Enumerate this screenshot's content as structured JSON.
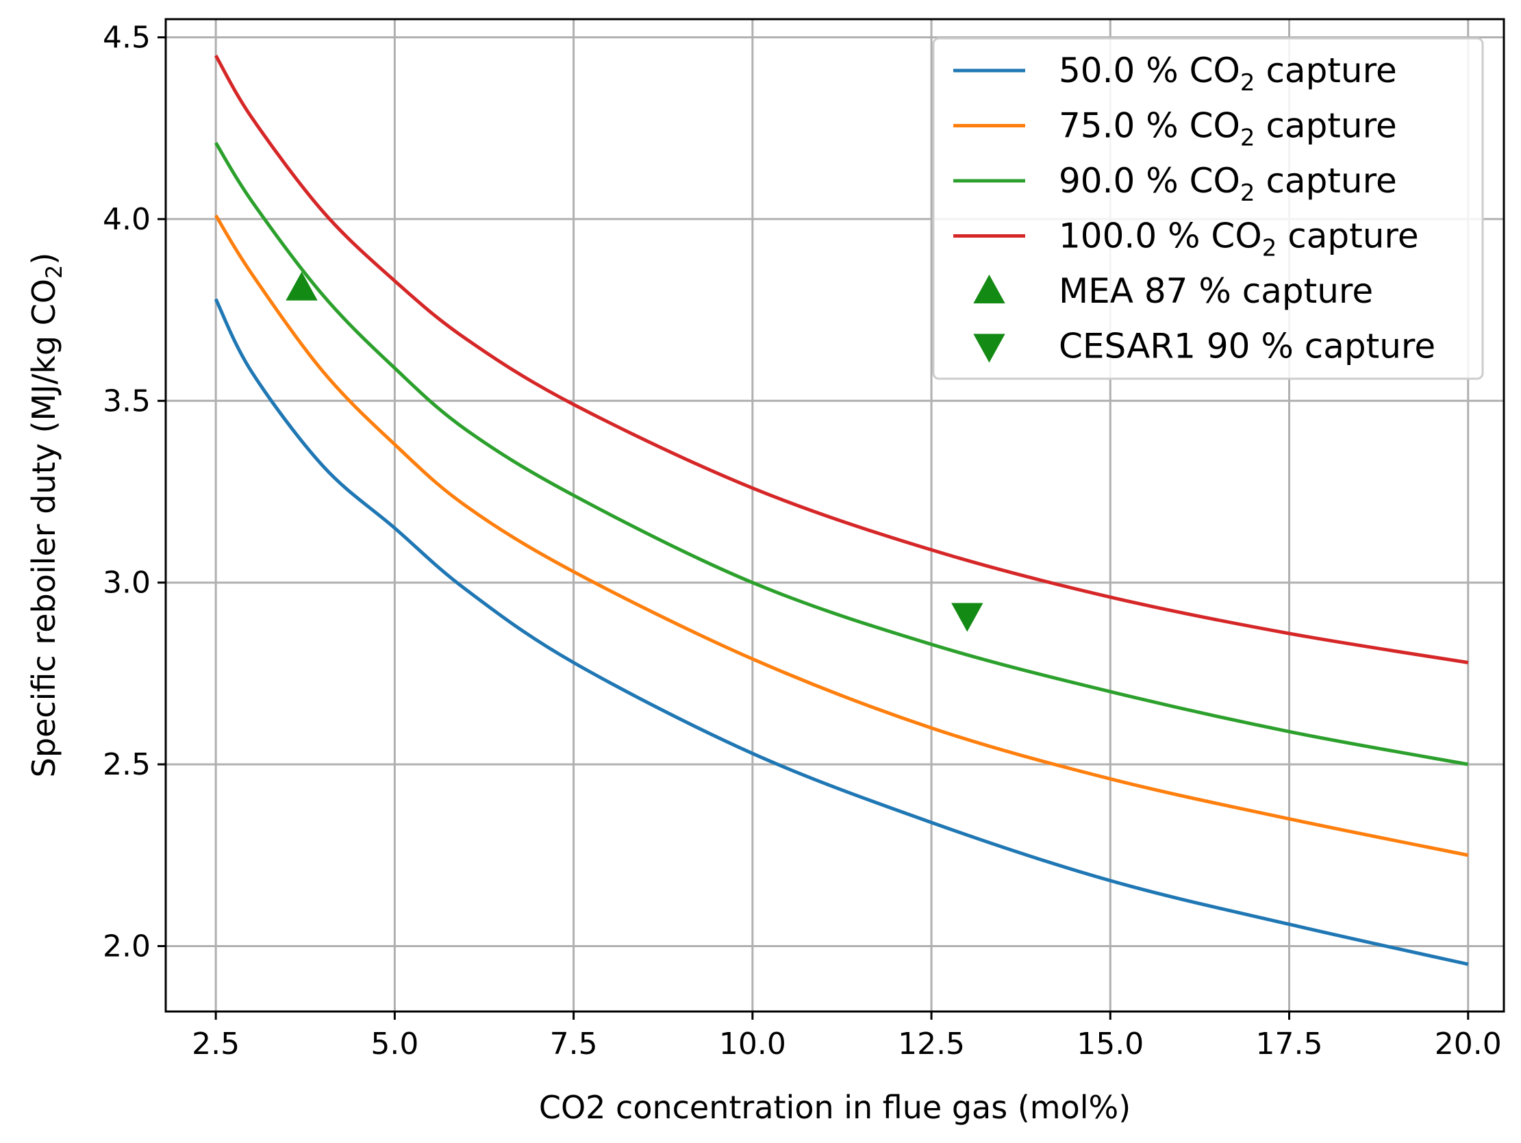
{
  "chart_data": {
    "type": "line",
    "title": "",
    "xlabel": "CO2 concentration in flue gas (mol%)",
    "ylabel_main": "Specific reboiler duty (MJ/kg CO",
    "ylabel_sub": "2",
    "ylabel_end": ")",
    "xlim": [
      1.8,
      20.5
    ],
    "ylim": [
      1.82,
      4.55
    ],
    "grid": true,
    "legend_position": "top-right",
    "x_ticks": [
      2.5,
      5.0,
      7.5,
      10.0,
      12.5,
      15.0,
      17.5,
      20.0
    ],
    "x_tick_labels": [
      "2.5",
      "5.0",
      "7.5",
      "10.0",
      "12.5",
      "15.0",
      "17.5",
      "20.0"
    ],
    "y_ticks": [
      2.0,
      2.5,
      3.0,
      3.5,
      4.0,
      4.5
    ],
    "y_tick_labels": [
      "2.0",
      "2.5",
      "3.0",
      "3.5",
      "4.0",
      "4.5"
    ],
    "x": [
      2.5,
      3.0,
      4.0,
      5.0,
      6.0,
      7.5,
      10.0,
      12.5,
      15.0,
      17.5,
      20.0
    ],
    "series": [
      {
        "name": "50.0 % CO2 capture",
        "label_pre": "50.0 % CO",
        "label_sub": "2",
        "label_post": " capture",
        "color": "#1f77b4",
        "values": [
          3.78,
          3.58,
          3.32,
          3.15,
          2.98,
          2.78,
          2.53,
          2.34,
          2.18,
          2.06,
          1.95
        ]
      },
      {
        "name": "75.0 % CO2 capture",
        "label_pre": "75.0 % CO",
        "label_sub": "2",
        "label_post": " capture",
        "color": "#ff7f0e",
        "values": [
          4.01,
          3.85,
          3.58,
          3.38,
          3.21,
          3.03,
          2.79,
          2.6,
          2.46,
          2.35,
          2.25
        ]
      },
      {
        "name": "90.0 % CO2 capture",
        "label_pre": "90.0 % CO",
        "label_sub": "2",
        "label_post": " capture",
        "color": "#2ca02c",
        "values": [
          4.21,
          4.05,
          3.79,
          3.59,
          3.42,
          3.24,
          3.0,
          2.83,
          2.7,
          2.59,
          2.5
        ]
      },
      {
        "name": "100.0 % CO2 capture",
        "label_pre": "100.0 % CO",
        "label_sub": "2",
        "label_post": " capture",
        "color": "#d62728",
        "values": [
          4.45,
          4.28,
          4.02,
          3.83,
          3.67,
          3.49,
          3.26,
          3.09,
          2.96,
          2.86,
          2.78
        ]
      }
    ],
    "markers": [
      {
        "name": "MEA 87 % capture",
        "x": 3.7,
        "y": 3.81,
        "shape": "triangle-up",
        "color": "#138a13"
      },
      {
        "name": "CESAR1 90 % capture",
        "x": 13.0,
        "y": 2.91,
        "shape": "triangle-down",
        "color": "#138a13"
      }
    ]
  }
}
